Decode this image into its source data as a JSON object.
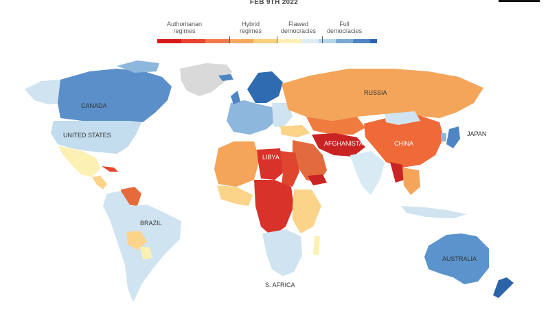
{
  "header": {
    "date": "FEB 9TH 2022"
  },
  "legend": {
    "groups": [
      {
        "label_line1": "Authoritarian",
        "label_line2": "regimes"
      },
      {
        "label_line1": "Hybrid",
        "label_line2": "regimes"
      },
      {
        "label_line1": "Flawed",
        "label_line2": "democracies"
      },
      {
        "label_line1": "Full",
        "label_line2": "democracies"
      }
    ],
    "colors": [
      "#d7191c",
      "#e8432f",
      "#f27a4a",
      "#f6a95c",
      "#fbcf7c",
      "#fdf0b3",
      "#deedf5",
      "#b6d6ea",
      "#7aa9d4",
      "#4e86c3",
      "#2b63a8"
    ]
  },
  "map": {
    "country_labels": {
      "canada": "CANADA",
      "united_states": "UNITED STATES",
      "brazil": "BRAZIL",
      "libya": "LIBYA",
      "afghanistan": "AFGHANISTAN",
      "russia": "RUSSIA",
      "china": "CHINA",
      "japan": "JAPAN",
      "australia": "AUSTRALIA",
      "s_africa": "S. AFRICA"
    },
    "category_colors": {
      "full_democracy": "#4e86c3",
      "flawed_democracy": "#cfe3f1",
      "hybrid_regime": "#fbd48a",
      "authoritarian_light": "#f4a55a",
      "authoritarian_mid": "#ef7b3f",
      "authoritarian_dark": "#d8322a",
      "no_data": "#d9d9d9"
    }
  }
}
